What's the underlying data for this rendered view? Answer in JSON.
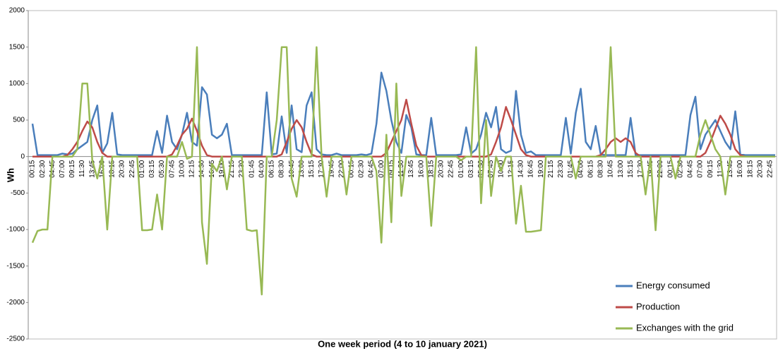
{
  "chart_data": {
    "type": "line",
    "x_label": "One week period (4 to 10  january 2021)",
    "y_label": "Wh",
    "ylim": [
      -2500,
      2000
    ],
    "yticks": [
      -2500,
      -2000,
      -1500,
      -1000,
      -500,
      0,
      500,
      1000,
      1500,
      2000
    ],
    "grid": false,
    "legend": "lower right",
    "categories": [
      "00:15",
      null,
      "02:30",
      null,
      "04:45",
      null,
      "07:00",
      null,
      "09:15",
      null,
      "11:30",
      null,
      "13:45",
      null,
      "16:00",
      null,
      "18:15",
      null,
      "20:30",
      null,
      "22:45",
      null,
      "01:00",
      null,
      "03:15",
      null,
      "05:30",
      null,
      "07:45",
      null,
      "10:00",
      null,
      "12:15",
      null,
      "14:30",
      null,
      "16:45",
      null,
      "19:00",
      null,
      "21:15",
      null,
      "23:30",
      null,
      "01:45",
      null,
      "04:00",
      null,
      "06:15",
      null,
      "08:30",
      null,
      "10:45",
      null,
      "13:00",
      null,
      "15:15",
      null,
      "17:30",
      null,
      "19:45",
      null,
      "22:00",
      null,
      "00:15",
      null,
      "02:30",
      null,
      "04:45",
      null,
      "07:00",
      null,
      "09:15",
      null,
      "11:30",
      null,
      "13:45",
      null,
      "16:00",
      null,
      "18:15",
      null,
      "20:30",
      null,
      "22:45",
      null,
      "01:00",
      null,
      "03:15",
      null,
      "05:30",
      null,
      "07:45",
      null,
      "10:00",
      null,
      "12:15",
      null,
      "14:30",
      null,
      "16:45",
      null,
      "19:00",
      null,
      "21:15",
      null,
      "23:30",
      null,
      "01:45",
      null,
      "04:00",
      null,
      "06:15",
      null,
      "08:30",
      null,
      "10:45",
      null,
      "13:00",
      null,
      "15:15",
      null,
      "17:30",
      null,
      "19:45",
      null,
      "22:00",
      null,
      "00:15",
      null,
      "02:30",
      null,
      "04:45",
      null,
      "07:00",
      null,
      "09:15",
      null,
      "11:30",
      null,
      "13:45",
      null,
      "16:00",
      null,
      "18:15",
      null,
      "20:30",
      null,
      "22:45",
      null
    ],
    "series": [
      {
        "name": "Energy consumed",
        "color": "#4a7ebb",
        "values": [
          450,
          20,
          20,
          20,
          20,
          20,
          40,
          30,
          40,
          100,
          150,
          200,
          500,
          700,
          50,
          180,
          600,
          30,
          20,
          20,
          20,
          20,
          20,
          20,
          20,
          350,
          50,
          560,
          200,
          100,
          300,
          600,
          200,
          150,
          950,
          850,
          300,
          250,
          300,
          450,
          20,
          20,
          20,
          20,
          20,
          20,
          20,
          880,
          30,
          40,
          550,
          50,
          700,
          100,
          60,
          700,
          880,
          100,
          30,
          20,
          20,
          40,
          20,
          20,
          20,
          20,
          30,
          20,
          40,
          450,
          1150,
          900,
          500,
          200,
          50,
          570,
          400,
          30,
          20,
          20,
          530,
          20,
          20,
          20,
          20,
          20,
          30,
          400,
          40,
          100,
          300,
          600,
          400,
          680,
          100,
          50,
          80,
          900,
          300,
          50,
          70,
          20,
          20,
          20,
          20,
          20,
          20,
          530,
          40,
          600,
          930,
          200,
          100,
          420,
          30,
          20,
          20,
          20,
          20,
          20,
          530,
          20,
          20,
          20,
          20,
          20,
          20,
          20,
          20,
          20,
          20,
          20,
          570,
          820,
          100,
          300,
          400,
          500,
          350,
          200,
          100,
          620,
          30,
          20,
          20,
          20,
          20,
          20,
          20,
          20
        ]
      },
      {
        "name": "Production",
        "color": "#be4b48",
        "values": [
          0,
          0,
          0,
          0,
          0,
          0,
          0,
          20,
          100,
          200,
          350,
          480,
          400,
          200,
          50,
          0,
          0,
          0,
          0,
          0,
          0,
          0,
          0,
          0,
          0,
          0,
          0,
          0,
          30,
          150,
          300,
          380,
          520,
          350,
          150,
          20,
          0,
          0,
          0,
          0,
          0,
          0,
          0,
          0,
          0,
          0,
          0,
          0,
          0,
          0,
          30,
          200,
          380,
          500,
          400,
          200,
          30,
          0,
          0,
          0,
          0,
          0,
          0,
          0,
          0,
          0,
          0,
          0,
          0,
          0,
          0,
          50,
          200,
          350,
          500,
          780,
          450,
          150,
          20,
          0,
          0,
          0,
          0,
          0,
          0,
          0,
          0,
          0,
          0,
          0,
          0,
          0,
          30,
          200,
          400,
          680,
          500,
          300,
          100,
          20,
          0,
          0,
          0,
          0,
          0,
          0,
          0,
          0,
          0,
          0,
          0,
          0,
          0,
          0,
          20,
          100,
          200,
          250,
          200,
          250,
          200,
          50,
          0,
          0,
          0,
          0,
          0,
          0,
          0,
          0,
          0,
          0,
          0,
          0,
          0,
          50,
          200,
          380,
          560,
          450,
          300,
          100,
          20,
          0,
          0,
          0,
          0,
          0,
          0,
          0
        ]
      },
      {
        "name": "Exchanges with the grid",
        "color": "#98b954",
        "values": [
          -1180,
          -1020,
          -1000,
          -1000,
          0,
          0,
          0,
          0,
          0,
          100,
          1000,
          1000,
          -50,
          -300,
          0,
          -1000,
          0,
          0,
          0,
          0,
          0,
          0,
          -1010,
          -1010,
          -1000,
          -520,
          -1000,
          0,
          0,
          0,
          200,
          -30,
          0,
          1500,
          -900,
          -1470,
          -100,
          -200,
          0,
          -450,
          0,
          0,
          0,
          -1000,
          -1020,
          -1010,
          -1890,
          0,
          0,
          500,
          1500,
          1500,
          -300,
          -550,
          0,
          0,
          0,
          1500,
          0,
          -550,
          0,
          0,
          0,
          -520,
          0,
          0,
          0,
          0,
          0,
          -200,
          -1180,
          300,
          -900,
          1000,
          -540,
          0,
          0,
          0,
          0,
          0,
          -950,
          0,
          0,
          0,
          0,
          0,
          -50,
          0,
          0,
          1500,
          -640,
          500,
          -540,
          0,
          -200,
          0,
          0,
          -920,
          -400,
          -1030,
          -1030,
          -1020,
          -1010,
          0,
          0,
          0,
          0,
          0,
          0,
          -300,
          0,
          0,
          0,
          0,
          0,
          0,
          1500,
          0,
          0,
          0,
          0,
          0,
          0,
          -520,
          0,
          -1010,
          0,
          0,
          0,
          -300,
          0,
          0,
          0,
          0,
          300,
          500,
          300,
          100,
          0,
          -520,
          0,
          0,
          0,
          0,
          0,
          0,
          0,
          0,
          0,
          0
        ]
      }
    ]
  }
}
